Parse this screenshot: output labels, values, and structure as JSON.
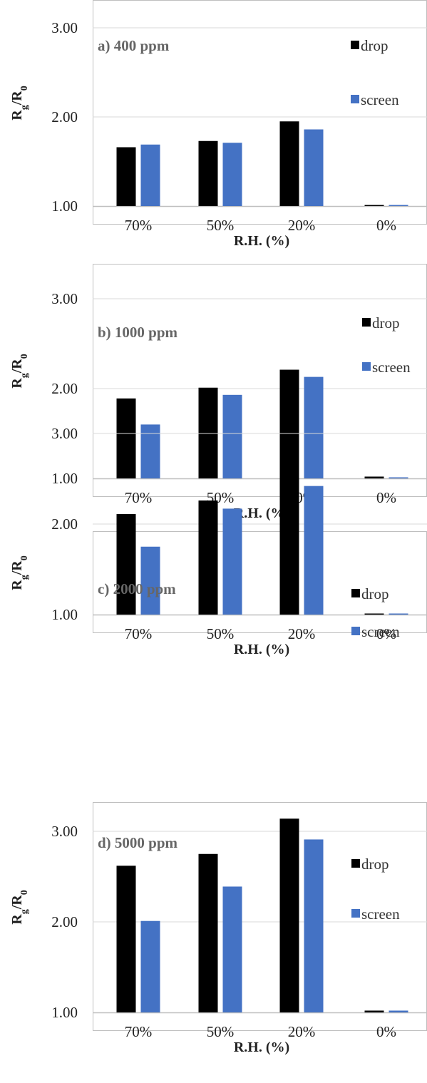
{
  "colors": {
    "drop": "#000000",
    "screen": "#4472c4",
    "grid": "#d9d9d9",
    "frame": "#bfbfbf"
  },
  "chart_data": [
    {
      "type": "bar",
      "title": "a) 400 ppm",
      "categories": [
        "70%",
        "50%",
        "20%",
        "0%"
      ],
      "series": [
        {
          "name": "drop",
          "values": [
            1.66,
            1.73,
            1.95,
            1.01
          ]
        },
        {
          "name": "screen",
          "values": [
            1.69,
            1.71,
            1.86,
            1.01
          ]
        }
      ],
      "xlabel": "R.H. (%)",
      "ylabel": {
        "main": "R",
        "sub1": "g",
        "mid": "/R",
        "sub2": "0"
      },
      "ylim": [
        1,
        3
      ],
      "yticks": [
        "1.00",
        "2.00",
        "3.00"
      ],
      "grid": true,
      "legend": "top-right"
    },
    {
      "type": "bar",
      "title": "b) 1000 ppm",
      "categories": [
        "70%",
        "50%",
        "20%",
        "0%"
      ],
      "series": [
        {
          "name": "drop",
          "values": [
            1.89,
            2.01,
            2.21,
            1.02
          ]
        },
        {
          "name": "screen",
          "values": [
            1.6,
            1.93,
            2.13,
            1.01
          ]
        }
      ],
      "xlabel": "R.H. (%)",
      "ylabel": {
        "main": "R",
        "sub1": "g",
        "mid": "/R",
        "sub2": "0"
      },
      "ylim": [
        1,
        3
      ],
      "yticks": [
        "1.00",
        "2.00",
        "3.00"
      ],
      "grid": true,
      "legend": "top-right"
    },
    {
      "type": "bar",
      "title": "c) 2000 ppm",
      "categories": [
        "70%",
        "50%",
        "20%",
        "0%"
      ],
      "series": [
        {
          "name": "drop",
          "values": [
            2.11,
            2.26,
            2.57,
            1.01
          ]
        },
        {
          "name": "screen",
          "values": [
            1.75,
            2.17,
            2.42,
            1.01
          ]
        }
      ],
      "xlabel": "R.H. (%)",
      "ylabel": {
        "main": "R",
        "sub1": "g",
        "mid": "/R",
        "sub2": "0"
      },
      "ylim": [
        1,
        3
      ],
      "yticks": [
        "1.00",
        "2.00",
        "3.00"
      ],
      "grid": true,
      "legend": "top-right"
    },
    {
      "type": "bar",
      "title": "d) 5000 ppm",
      "categories": [
        "70%",
        "50%",
        "20%",
        "0%"
      ],
      "series": [
        {
          "name": "drop",
          "values": [
            2.62,
            2.75,
            3.14,
            1.02
          ]
        },
        {
          "name": "screen",
          "values": [
            2.01,
            2.39,
            2.91,
            1.02
          ]
        }
      ],
      "xlabel": "R.H. (%)",
      "ylabel": {
        "main": "R",
        "sub1": "g",
        "mid": "/R",
        "sub2": "0"
      },
      "ylim": [
        1,
        3
      ],
      "yticks": [
        "1.00",
        "2.00",
        "3.00"
      ],
      "grid": true,
      "legend": "top-right"
    }
  ]
}
